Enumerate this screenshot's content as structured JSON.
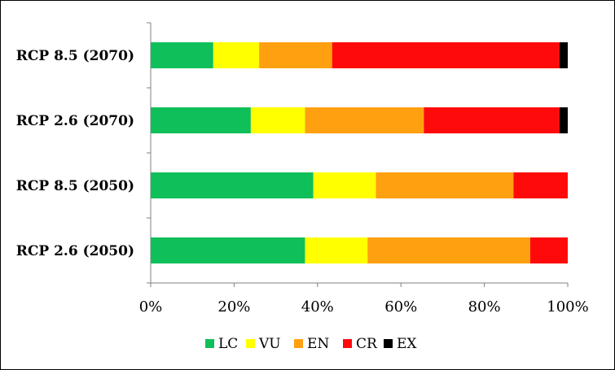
{
  "chart_data": {
    "type": "bar",
    "orientation": "horizontal",
    "stacked": "percent",
    "title": "",
    "xlabel": "",
    "ylabel": "",
    "xlim": [
      0,
      100
    ],
    "x_ticks": [
      "0%",
      "20%",
      "40%",
      "60%",
      "80%",
      "100%"
    ],
    "categories": [
      "RCP 8.5 (2070)",
      "RCP 2.6 (2070)",
      "RCP 8.5 (2050)",
      "RCP 2.6 (2050)"
    ],
    "series": [
      {
        "name": "LC",
        "color": "#0fbf5a",
        "values": [
          15,
          24,
          39,
          37
        ]
      },
      {
        "name": "VU",
        "color": "#ffff00",
        "values": [
          11,
          13,
          15,
          15
        ]
      },
      {
        "name": "EN",
        "color": "#ffa010",
        "values": [
          17.5,
          28.5,
          33,
          39
        ]
      },
      {
        "name": "CR",
        "color": "#ff0a0a",
        "values": [
          54.5,
          32.5,
          13,
          9
        ]
      },
      {
        "name": "EX",
        "color": "#000000",
        "values": [
          2,
          2,
          0,
          0
        ]
      }
    ],
    "grid": false,
    "legend_position": "bottom"
  }
}
